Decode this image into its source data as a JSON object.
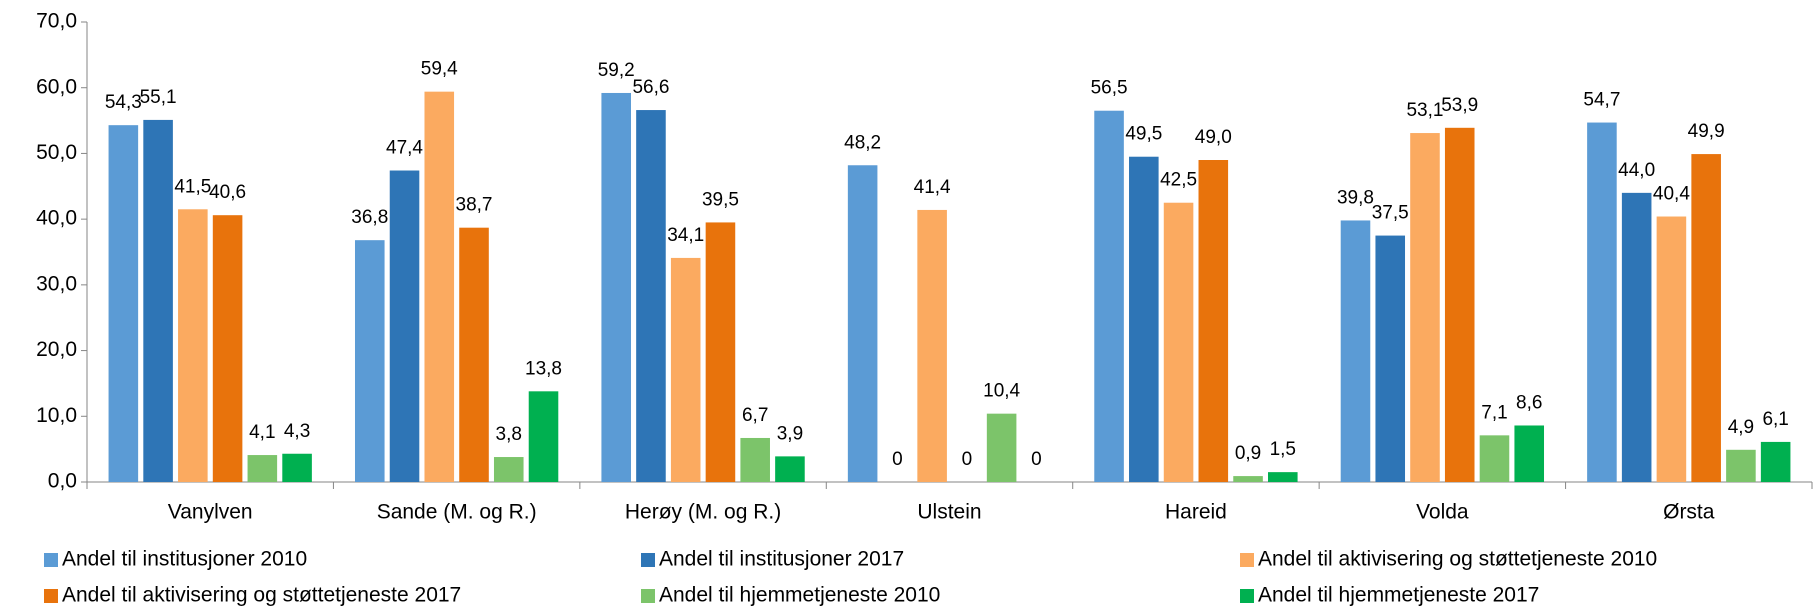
{
  "chart_data": {
    "type": "bar",
    "categories": [
      "Vanylven",
      "Sande (M. og R.)",
      "Herøy (M. og R.)",
      "Ulstein",
      "Hareid",
      "Volda",
      "Ørsta"
    ],
    "series": [
      {
        "name": "Andel til institusjoner 2010",
        "color": "#5b9bd5",
        "values": [
          54.3,
          36.8,
          59.2,
          48.2,
          56.5,
          39.8,
          54.7
        ],
        "value_labels": [
          "54,3",
          "36,8",
          "59,2",
          "48,2",
          "56,5",
          "39,8",
          "54,7"
        ]
      },
      {
        "name": "Andel til institusjoner 2017",
        "color": "#2e75b6",
        "values": [
          55.1,
          47.4,
          56.6,
          0,
          49.5,
          37.5,
          44.0
        ],
        "value_labels": [
          "55,1",
          "47,4",
          "56,6",
          "0",
          "49,5",
          "37,5",
          "44,0"
        ]
      },
      {
        "name": "Andel til aktivisering og støttetjeneste 2010",
        "color": "#fbaa60",
        "values": [
          41.5,
          59.4,
          34.1,
          41.4,
          42.5,
          53.1,
          40.4
        ],
        "value_labels": [
          "41,5",
          "59,4",
          "34,1",
          "41,4",
          "42,5",
          "53,1",
          "40,4"
        ]
      },
      {
        "name": "Andel til aktivisering og støttetjeneste 2017",
        "color": "#e8730c",
        "values": [
          40.6,
          38.7,
          39.5,
          0,
          49.0,
          53.9,
          49.9
        ],
        "value_labels": [
          "40,6",
          "38,7",
          "39,5",
          "0",
          "49,0",
          "53,9",
          "49,9"
        ]
      },
      {
        "name": "Andel til hjemmetjeneste 2010",
        "color": "#7cc46a",
        "values": [
          4.1,
          3.8,
          6.7,
          10.4,
          0.9,
          7.1,
          4.9
        ],
        "value_labels": [
          "4,1",
          "3,8",
          "6,7",
          "10,4",
          "0,9",
          "7,1",
          "4,9"
        ]
      },
      {
        "name": "Andel til hjemmetjeneste 2017",
        "color": "#00b050",
        "values": [
          4.3,
          13.8,
          3.9,
          0,
          1.5,
          8.6,
          6.1
        ],
        "value_labels": [
          "4,3",
          "13,8",
          "3,9",
          "0",
          "1,5",
          "8,6",
          "6,1"
        ]
      }
    ],
    "ylim": [
      0,
      70
    ],
    "yticks": [
      {
        "value": 0,
        "label": "0,0"
      },
      {
        "value": 10,
        "label": "10,0"
      },
      {
        "value": 20,
        "label": "20,0"
      },
      {
        "value": 30,
        "label": "30,0"
      },
      {
        "value": 40,
        "label": "40,0"
      },
      {
        "value": 50,
        "label": "50,0"
      },
      {
        "value": 60,
        "label": "60,0"
      },
      {
        "value": 70,
        "label": "70,0"
      }
    ],
    "grid": false,
    "legend": "bottom"
  }
}
